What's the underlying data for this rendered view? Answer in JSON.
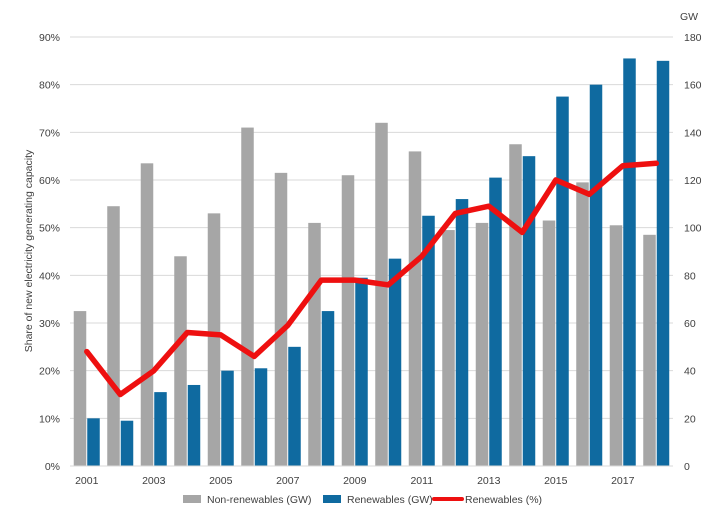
{
  "chart_data": {
    "type": "bar",
    "x": [
      2001,
      2002,
      2003,
      2004,
      2005,
      2006,
      2007,
      2008,
      2009,
      2010,
      2011,
      2012,
      2013,
      2014,
      2015,
      2016,
      2017,
      2018
    ],
    "x_tick_labels": [
      "2001",
      "2003",
      "2005",
      "2007",
      "2009",
      "2011",
      "2013",
      "2015",
      "2017"
    ],
    "ylabel_left": "Share of new electricity generating capacity",
    "ylabel_right": "GW",
    "ylim_left": [
      0,
      90
    ],
    "ylim_right": [
      0,
      180
    ],
    "y_ticks_left": [
      "0%",
      "10%",
      "20%",
      "30%",
      "40%",
      "50%",
      "60%",
      "70%",
      "80%",
      "90%"
    ],
    "y_ticks_right": [
      "0",
      "20",
      "40",
      "60",
      "80",
      "100",
      "120",
      "140",
      "160",
      "180"
    ],
    "grid": true,
    "legend_position": "bottom",
    "series": [
      {
        "name": "Non-renewables (GW)",
        "kind": "bar",
        "axis": "right",
        "color": "#a6a6a6",
        "values": [
          65,
          109,
          127,
          88,
          106,
          142,
          123,
          102,
          122,
          144,
          132,
          99,
          102,
          135,
          103,
          119,
          101,
          97
        ]
      },
      {
        "name": "Renewables (GW)",
        "kind": "bar",
        "axis": "right",
        "color": "#0f6aa0",
        "values": [
          20,
          19,
          31,
          34,
          40,
          41,
          50,
          65,
          79,
          87,
          105,
          112,
          121,
          130,
          155,
          160,
          171,
          170
        ]
      },
      {
        "name": "Renewables (%)",
        "kind": "line",
        "axis": "left",
        "color": "#ee1010",
        "values": [
          24,
          15,
          20,
          28,
          27.5,
          23,
          29.5,
          39,
          39,
          38,
          44,
          53,
          54.5,
          49,
          60,
          57,
          63,
          63.5
        ]
      }
    ]
  }
}
